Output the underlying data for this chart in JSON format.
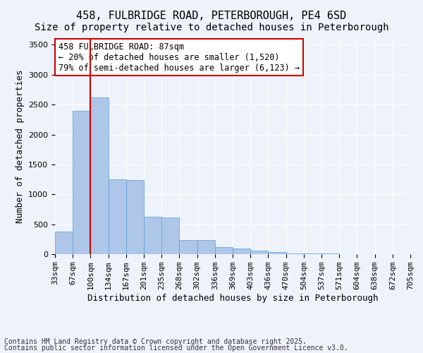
{
  "title1": "458, FULBRIDGE ROAD, PETERBOROUGH, PE4 6SD",
  "title2": "Size of property relative to detached houses in Peterborough",
  "xlabel": "Distribution of detached houses by size in Peterborough",
  "ylabel": "Number of detached properties",
  "annotation_line1": "458 FULBRIDGE ROAD: 87sqm",
  "annotation_line2": "← 20% of detached houses are smaller (1,520)",
  "annotation_line3": "79% of semi-detached houses are larger (6,123) →",
  "footer1": "Contains HM Land Registry data © Crown copyright and database right 2025.",
  "footer2": "Contains public sector information licensed under the Open Government Licence v3.0.",
  "bin_labels": [
    "33sqm",
    "67sqm",
    "100sqm",
    "134sqm",
    "167sqm",
    "201sqm",
    "235sqm",
    "268sqm",
    "302sqm",
    "336sqm",
    "369sqm",
    "403sqm",
    "436sqm",
    "470sqm",
    "504sqm",
    "537sqm",
    "571sqm",
    "604sqm",
    "638sqm",
    "672sqm",
    "705sqm"
  ],
  "bar_values": [
    380,
    2400,
    2620,
    1250,
    1240,
    620,
    615,
    240,
    235,
    120,
    90,
    55,
    40,
    15,
    10,
    6,
    3,
    2,
    1,
    1
  ],
  "bar_color": "#aec6e8",
  "bar_edge_color": "#5a9fd4",
  "red_line_x": 1.5,
  "ylim": [
    0,
    3600
  ],
  "yticks": [
    0,
    500,
    1000,
    1500,
    2000,
    2500,
    3000,
    3500
  ],
  "bg_color": "#eef2fb",
  "grid_color": "#ffffff",
  "annotation_box_color": "#ffffff",
  "annotation_box_edge": "#cc0000",
  "red_line_color": "#cc0000",
  "title_fontsize": 11,
  "subtitle_fontsize": 10,
  "axis_label_fontsize": 9,
  "tick_fontsize": 8,
  "annotation_fontsize": 8.5,
  "footer_fontsize": 7
}
